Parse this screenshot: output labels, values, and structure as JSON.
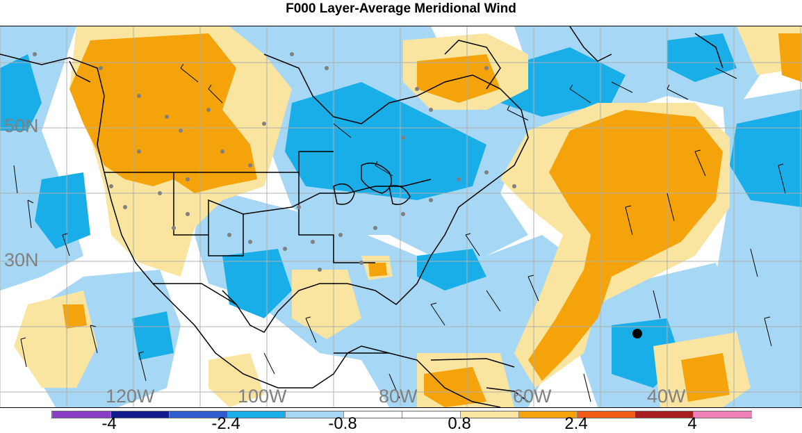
{
  "title": "F000 Layer-Average Meridional Wind",
  "map": {
    "lat_labels": [
      "50N",
      "30N"
    ],
    "lon_labels": [
      "120W",
      "100W",
      "80W",
      "60W",
      "40W"
    ],
    "colors": {
      "light_blue": "#a6d8f5",
      "mid_blue": "#1aaee8",
      "light_yellow": "#f9e5a0",
      "orange": "#f4a30a",
      "ocean_white": "#ffffff",
      "grid": "#b0b0b0",
      "coast": "#000000",
      "obs_dot": "#808080"
    }
  },
  "colorbar": {
    "colors": [
      "#8a3fc8",
      "#101a8c",
      "#2f5bd0",
      "#1aaee8",
      "#a6d8f5",
      "#ffffff",
      "#ffffff",
      "#f9e5a0",
      "#f4a30a",
      "#f05a14",
      "#a81e1e",
      "#f082b8"
    ],
    "tick_labels": [
      "-4",
      "-2.4",
      "-0.8",
      "0.8",
      "2.4",
      "4"
    ]
  }
}
